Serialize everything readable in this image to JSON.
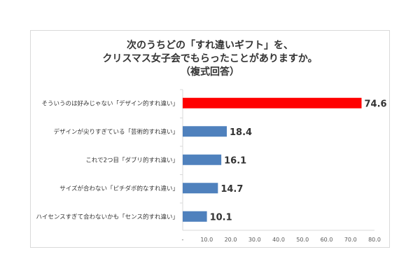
{
  "chart_data": {
    "type": "bar",
    "orientation": "horizontal",
    "title": [
      "次のうちどの「すれ違いギフト」を、",
      "クリスマス女子会でもらったことがありますか。",
      "（複式回答）"
    ],
    "categories": [
      "そういうのは好みじゃない「デザイン的すれ違い」",
      "デザインが尖りすぎている「芸術的すれ違い」",
      "これで2つ目「ダブリ的すれ違い」",
      "サイズが合わない「ピチダボ的なすれ違い」",
      "ハイセンスすぎて合わないかも「センス的すれ違い」"
    ],
    "values": [
      74.6,
      18.4,
      16.1,
      14.7,
      10.1
    ],
    "value_labels": [
      "74.6",
      "18.4",
      "16.1",
      "14.7",
      "10.1"
    ],
    "highlight_color": "#ff0000",
    "bar_color": "#4f81bd",
    "xlim": [
      0,
      80
    ],
    "x_ticks": [
      "-",
      "10.0",
      "20.0",
      "30.0",
      "40.0",
      "50.0",
      "60.0",
      "70.0",
      "80.0"
    ],
    "grid": false,
    "legend": "none"
  }
}
